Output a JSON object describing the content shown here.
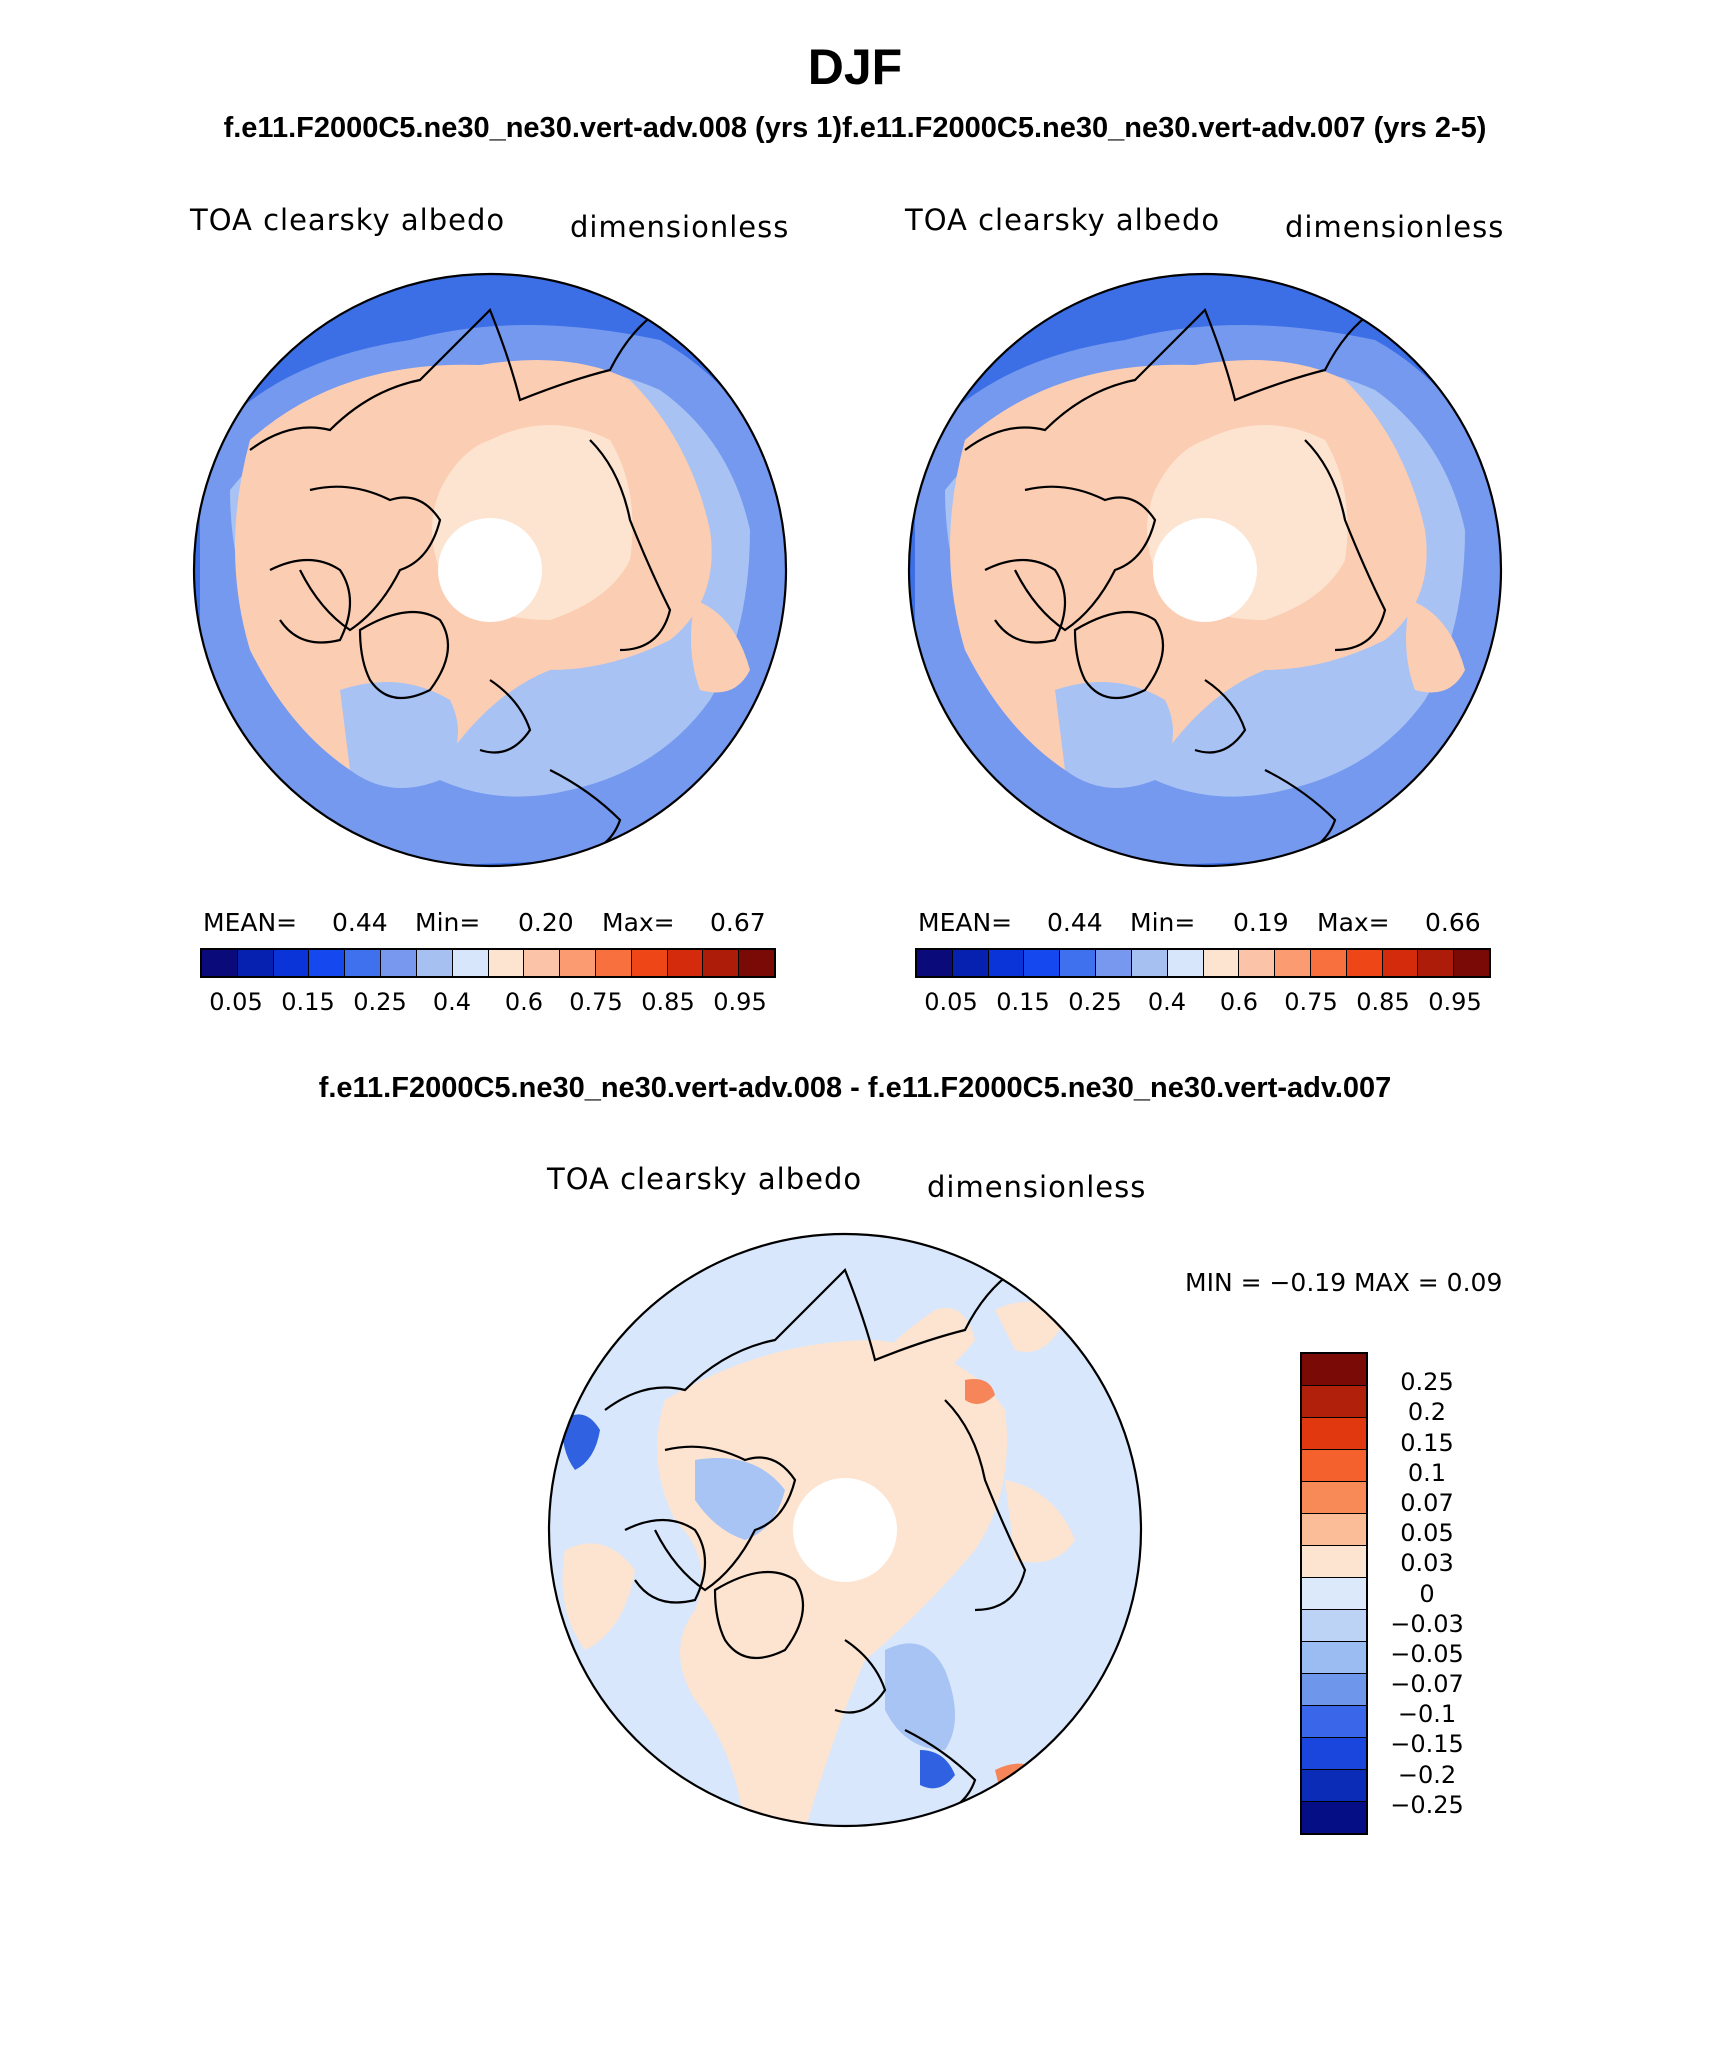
{
  "main_title": "DJF",
  "case_title": "f.e11.F2000C5.ne30_ne30.vert-adv.008 (yrs 1)f.e11.F2000C5.ne30_ne30.vert-adv.007 (yrs 2-5)",
  "diff_title": "f.e11.F2000C5.ne30_ne30.vert-adv.008 - f.e11.F2000C5.ne30_ne30.vert-adv.007",
  "panels": [
    {
      "variable": "TOA clearsky albedo",
      "units": "dimensionless",
      "mean_label": "MEAN=",
      "mean": "0.44",
      "min_label": "Min=",
      "min": "0.20",
      "max_label": "Max=",
      "max": "0.67"
    },
    {
      "variable": "TOA clearsky albedo",
      "units": "dimensionless",
      "mean_label": "MEAN=",
      "mean": "0.44",
      "min_label": "Min=",
      "min": "0.19",
      "max_label": "Max=",
      "max": "0.66"
    }
  ],
  "diff_panel": {
    "variable": "TOA clearsky albedo",
    "units": "dimensionless",
    "stats": "MIN =  −0.19 MAX =    0.09"
  },
  "colorbar": {
    "colors": [
      "#0a0a7a",
      "#0620b0",
      "#0a34d8",
      "#1548ee",
      "#3f70ee",
      "#7898ef",
      "#a6c0f2",
      "#d7e6fa",
      "#fde4d1",
      "#fbc3a7",
      "#fa9b72",
      "#f8703e",
      "#ee4617",
      "#d32b0b",
      "#ac1c08",
      "#7a0a05"
    ],
    "tick_labels": [
      "0.05",
      "0.15",
      "0.25",
      "0.4",
      "0.6",
      "0.75",
      "0.85",
      "0.95"
    ]
  },
  "diff_colorbar": {
    "colors": [
      "#7a0a05",
      "#b1200a",
      "#e23810",
      "#f5612c",
      "#f88a58",
      "#fbbd98",
      "#fde4d1",
      "#dce9fa",
      "#bcd3f5",
      "#9bbcf2",
      "#6e97ec",
      "#3a67ea",
      "#1a46de",
      "#0b2cb6",
      "#060e86"
    ],
    "tick_labels": [
      "0.25",
      "0.2",
      "0.15",
      "0.1",
      "0.07",
      "0.05",
      "0.03",
      "0",
      "−0.03",
      "−0.05",
      "−0.07",
      "−0.1",
      "−0.15",
      "−0.2",
      "−0.25"
    ]
  },
  "map_colors": {
    "ocean_deep": "#3c6fe6",
    "ocean_mid": "#7499ee",
    "ocean_light": "#a8c2f4",
    "land": "#fbcdb3",
    "land_light": "#fde4d1",
    "pole": "#ffffff",
    "diff_base": "#d8e7fb",
    "diff_pos": "#fde4d1",
    "diff_neg": "#a8c4f4",
    "diff_strong_neg": "#2f61e0",
    "diff_strong_pos": "#f6865a"
  }
}
